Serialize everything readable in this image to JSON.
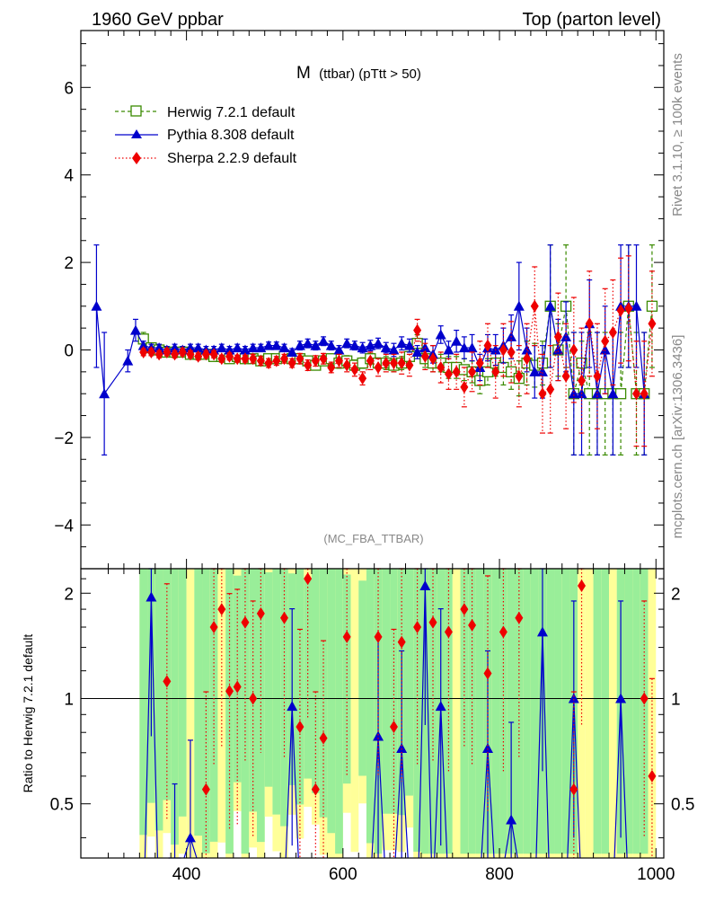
{
  "header": {
    "left_title": "1960 GeV ppbar",
    "right_title": "Top (parton level)"
  },
  "side_labels": {
    "rivet": "Rivet 3.1.10, ≥ 100k events",
    "mcplots": "mcplots.cern.ch [arXiv:1306.3436]"
  },
  "chart_data": [
    {
      "type": "line",
      "title_main": "M",
      "title_sub": "(ttbar) (pTtt > 50)",
      "analysis_label": "(MC_FBA_TTBAR)",
      "xlim": [
        265,
        1010
      ],
      "ylim": [
        -5.0,
        7.3
      ],
      "yticks": [
        -4,
        -2,
        0,
        2,
        4,
        6
      ],
      "ytick_labels": [
        "−4",
        "−2",
        "0",
        "2",
        "4",
        "6"
      ],
      "legend_position": "top-left",
      "series": [
        {
          "name": "Herwig 7.2.1 default",
          "color": "#3a8a00",
          "style": "dashed",
          "marker": "open-square",
          "x": [
            345,
            355,
            365,
            375,
            385,
            395,
            405,
            415,
            425,
            435,
            445,
            455,
            465,
            475,
            485,
            495,
            505,
            515,
            525,
            535,
            545,
            555,
            565,
            575,
            585,
            595,
            605,
            615,
            625,
            635,
            645,
            655,
            665,
            675,
            685,
            695,
            705,
            715,
            725,
            735,
            745,
            755,
            765,
            775,
            785,
            795,
            805,
            815,
            825,
            835,
            845,
            855,
            865,
            875,
            885,
            895,
            905,
            915,
            925,
            935,
            945,
            955,
            965,
            975,
            985,
            995
          ],
          "y": [
            0.25,
            0.05,
            0.0,
            -0.05,
            -0.05,
            -0.05,
            -0.1,
            -0.1,
            -0.1,
            -0.15,
            -0.15,
            -0.2,
            -0.15,
            -0.2,
            -0.2,
            -0.25,
            -0.2,
            -0.2,
            -0.15,
            -0.2,
            -0.2,
            -0.25,
            -0.35,
            -0.25,
            -0.2,
            -0.3,
            -0.25,
            -0.35,
            -0.3,
            -0.2,
            -0.3,
            -0.3,
            -0.35,
            -0.3,
            -0.15,
            0.15,
            -0.2,
            -0.3,
            -0.3,
            -0.4,
            -0.4,
            -0.45,
            -0.5,
            -0.7,
            -0.5,
            -0.3,
            -0.4,
            -0.5,
            -0.65,
            -0.3,
            -0.35,
            -0.3,
            1.0,
            0.0,
            1.0,
            -1.0,
            -0.3,
            -1.0,
            -1.0,
            -1.0,
            -1.0,
            -1.0,
            1.0,
            -1.0,
            -1.0,
            1.0
          ],
          "err": [
            0.15,
            0.1,
            0.08,
            0.08,
            0.08,
            0.08,
            0.08,
            0.08,
            0.08,
            0.08,
            0.08,
            0.08,
            0.08,
            0.08,
            0.08,
            0.08,
            0.08,
            0.08,
            0.08,
            0.1,
            0.1,
            0.1,
            0.1,
            0.1,
            0.1,
            0.12,
            0.12,
            0.12,
            0.12,
            0.12,
            0.12,
            0.15,
            0.15,
            0.15,
            0.2,
            0.2,
            0.2,
            0.2,
            0.2,
            0.25,
            0.25,
            0.25,
            0.25,
            0.3,
            0.3,
            0.3,
            0.4,
            0.4,
            0.4,
            0.5,
            0.5,
            0.5,
            1.4,
            0.6,
            1.4,
            1.4,
            0.5,
            1.4,
            1.4,
            1.4,
            1.4,
            1.4,
            1.4,
            1.4,
            1.4,
            1.4
          ]
        },
        {
          "name": "Pythia 8.308 default",
          "color": "#0000cc",
          "style": "solid",
          "marker": "filled-triangle",
          "x": [
            285,
            295,
            325,
            335,
            345,
            355,
            365,
            375,
            385,
            395,
            405,
            415,
            425,
            435,
            445,
            455,
            465,
            475,
            485,
            495,
            505,
            515,
            525,
            535,
            545,
            555,
            565,
            575,
            585,
            595,
            605,
            615,
            625,
            635,
            645,
            655,
            665,
            675,
            685,
            695,
            705,
            715,
            725,
            735,
            745,
            755,
            765,
            775,
            785,
            795,
            805,
            815,
            825,
            835,
            845,
            855,
            865,
            875,
            885,
            895,
            905,
            915,
            925,
            935,
            945,
            955,
            965,
            975,
            985
          ],
          "y": [
            1.0,
            -1.0,
            -0.25,
            0.45,
            0.1,
            0.05,
            0.05,
            0.0,
            0.05,
            0.0,
            0.05,
            0.05,
            0.0,
            0.0,
            0.05,
            0.0,
            0.05,
            0.0,
            0.05,
            0.05,
            0.1,
            0.1,
            0.05,
            -0.05,
            0.1,
            0.15,
            0.1,
            0.2,
            0.1,
            0.0,
            0.15,
            0.1,
            0.05,
            0.1,
            0.15,
            0.05,
            0.0,
            0.15,
            0.1,
            -0.05,
            0.05,
            -0.1,
            0.35,
            0.0,
            0.2,
            0.05,
            0.05,
            -0.4,
            0.05,
            0.0,
            0.1,
            0.3,
            1.0,
            0.0,
            -0.5,
            -0.5,
            1.0,
            0.0,
            0.3,
            -1.0,
            -1.0,
            0.6,
            -1.0,
            0.0,
            -1.0,
            1.0,
            1.0,
            1.0,
            -1.0
          ],
          "err": [
            1.4,
            1.4,
            0.25,
            0.25,
            0.1,
            0.08,
            0.08,
            0.08,
            0.08,
            0.08,
            0.08,
            0.08,
            0.08,
            0.08,
            0.08,
            0.08,
            0.08,
            0.08,
            0.08,
            0.08,
            0.08,
            0.08,
            0.08,
            0.08,
            0.1,
            0.1,
            0.1,
            0.1,
            0.1,
            0.1,
            0.1,
            0.1,
            0.12,
            0.12,
            0.12,
            0.12,
            0.15,
            0.15,
            0.15,
            0.15,
            0.2,
            0.2,
            0.2,
            0.2,
            0.25,
            0.25,
            0.3,
            0.3,
            0.3,
            0.35,
            0.4,
            0.5,
            1.0,
            0.5,
            0.6,
            0.6,
            1.4,
            0.7,
            0.8,
            1.4,
            1.4,
            1.0,
            1.4,
            1.0,
            1.4,
            1.4,
            1.4,
            1.4,
            1.4
          ]
        },
        {
          "name": "Sherpa 2.2.9 default",
          "color": "#ee0000",
          "style": "dotted",
          "marker": "filled-diamond",
          "x": [
            345,
            355,
            365,
            375,
            385,
            395,
            405,
            415,
            425,
            435,
            445,
            455,
            465,
            475,
            485,
            495,
            505,
            515,
            525,
            535,
            545,
            555,
            565,
            575,
            585,
            595,
            605,
            615,
            625,
            635,
            645,
            655,
            665,
            675,
            685,
            695,
            705,
            715,
            725,
            735,
            745,
            755,
            765,
            775,
            785,
            795,
            805,
            815,
            825,
            835,
            845,
            855,
            865,
            875,
            885,
            895,
            905,
            915,
            925,
            935,
            945,
            955,
            965,
            975,
            985,
            995
          ],
          "y": [
            -0.05,
            -0.05,
            -0.1,
            -0.05,
            -0.1,
            -0.05,
            -0.1,
            -0.15,
            -0.1,
            -0.1,
            -0.2,
            -0.15,
            -0.2,
            -0.2,
            -0.2,
            -0.25,
            -0.3,
            -0.25,
            -0.2,
            -0.3,
            -0.2,
            -0.35,
            -0.25,
            -0.2,
            -0.4,
            -0.25,
            -0.35,
            -0.45,
            -0.65,
            -0.25,
            -0.4,
            -0.3,
            -0.3,
            -0.3,
            -0.35,
            0.45,
            -0.15,
            -0.2,
            -0.4,
            -0.55,
            -0.5,
            -0.85,
            -0.5,
            -0.3,
            0.1,
            -0.5,
            0.0,
            -0.05,
            -0.6,
            -0.2,
            1.0,
            -1.0,
            -0.9,
            0.3,
            -0.6,
            0.0,
            -0.7,
            0.6,
            -0.6,
            0.2,
            0.4,
            0.9,
            0.95,
            -1.0,
            -1.0,
            0.6
          ],
          "err": [
            0.08,
            0.08,
            0.08,
            0.08,
            0.08,
            0.08,
            0.08,
            0.08,
            0.08,
            0.08,
            0.08,
            0.08,
            0.08,
            0.08,
            0.1,
            0.1,
            0.1,
            0.1,
            0.1,
            0.1,
            0.12,
            0.12,
            0.12,
            0.12,
            0.12,
            0.15,
            0.15,
            0.15,
            0.15,
            0.2,
            0.2,
            0.2,
            0.2,
            0.25,
            0.25,
            0.25,
            0.3,
            0.3,
            0.35,
            0.35,
            0.4,
            0.45,
            0.45,
            0.5,
            0.5,
            0.6,
            0.6,
            0.7,
            0.7,
            0.8,
            0.9,
            0.9,
            1.0,
            1.0,
            1.2,
            1.2,
            1.2,
            1.2,
            1.2,
            1.2,
            1.2,
            1.2,
            1.2,
            1.2,
            1.2,
            1.2
          ]
        }
      ]
    },
    {
      "type": "line",
      "ylabel": "Ratio to Herwig 7.2.1 default",
      "xlim": [
        265,
        1010
      ],
      "ylim": [
        0.35,
        2.35
      ],
      "xticks": [
        400,
        600,
        800,
        1000
      ],
      "xtick_labels": [
        "400",
        "600",
        "800",
        "1000"
      ],
      "yticks": [
        0.5,
        1,
        2
      ],
      "ytick_labels": [
        "0.5",
        "1",
        "2"
      ],
      "reference_line": 1,
      "band_colors": {
        "inner": "#99ee99",
        "outer": "#ffff99"
      },
      "series": [
        {
          "name": "Pythia 8.308 default",
          "color": "#0000cc",
          "x": [
            355,
            385,
            405,
            535,
            645,
            675,
            705,
            725,
            785,
            815,
            855,
            895,
            955
          ],
          "y": [
            1.95,
            0.3,
            0.4,
            0.95,
            0.78,
            0.72,
            2.1,
            0.95,
            0.72,
            0.45,
            1.55,
            1.0,
            1.0
          ]
        },
        {
          "name": "Sherpa 2.2.9 default",
          "color": "#ee0000",
          "x": [
            375,
            425,
            435,
            445,
            455,
            465,
            475,
            485,
            495,
            525,
            545,
            555,
            565,
            575,
            605,
            645,
            665,
            675,
            695,
            715,
            735,
            755,
            765,
            785,
            805,
            825,
            895,
            905,
            985,
            995
          ],
          "y": [
            1.12,
            0.55,
            1.6,
            1.8,
            1.05,
            1.08,
            1.65,
            1.0,
            1.75,
            1.7,
            0.83,
            2.2,
            0.55,
            0.77,
            1.5,
            1.5,
            0.83,
            1.45,
            1.6,
            1.65,
            1.55,
            1.8,
            1.62,
            1.18,
            1.55,
            1.7,
            0.55,
            2.1,
            1.0,
            0.6
          ]
        }
      ]
    }
  ]
}
